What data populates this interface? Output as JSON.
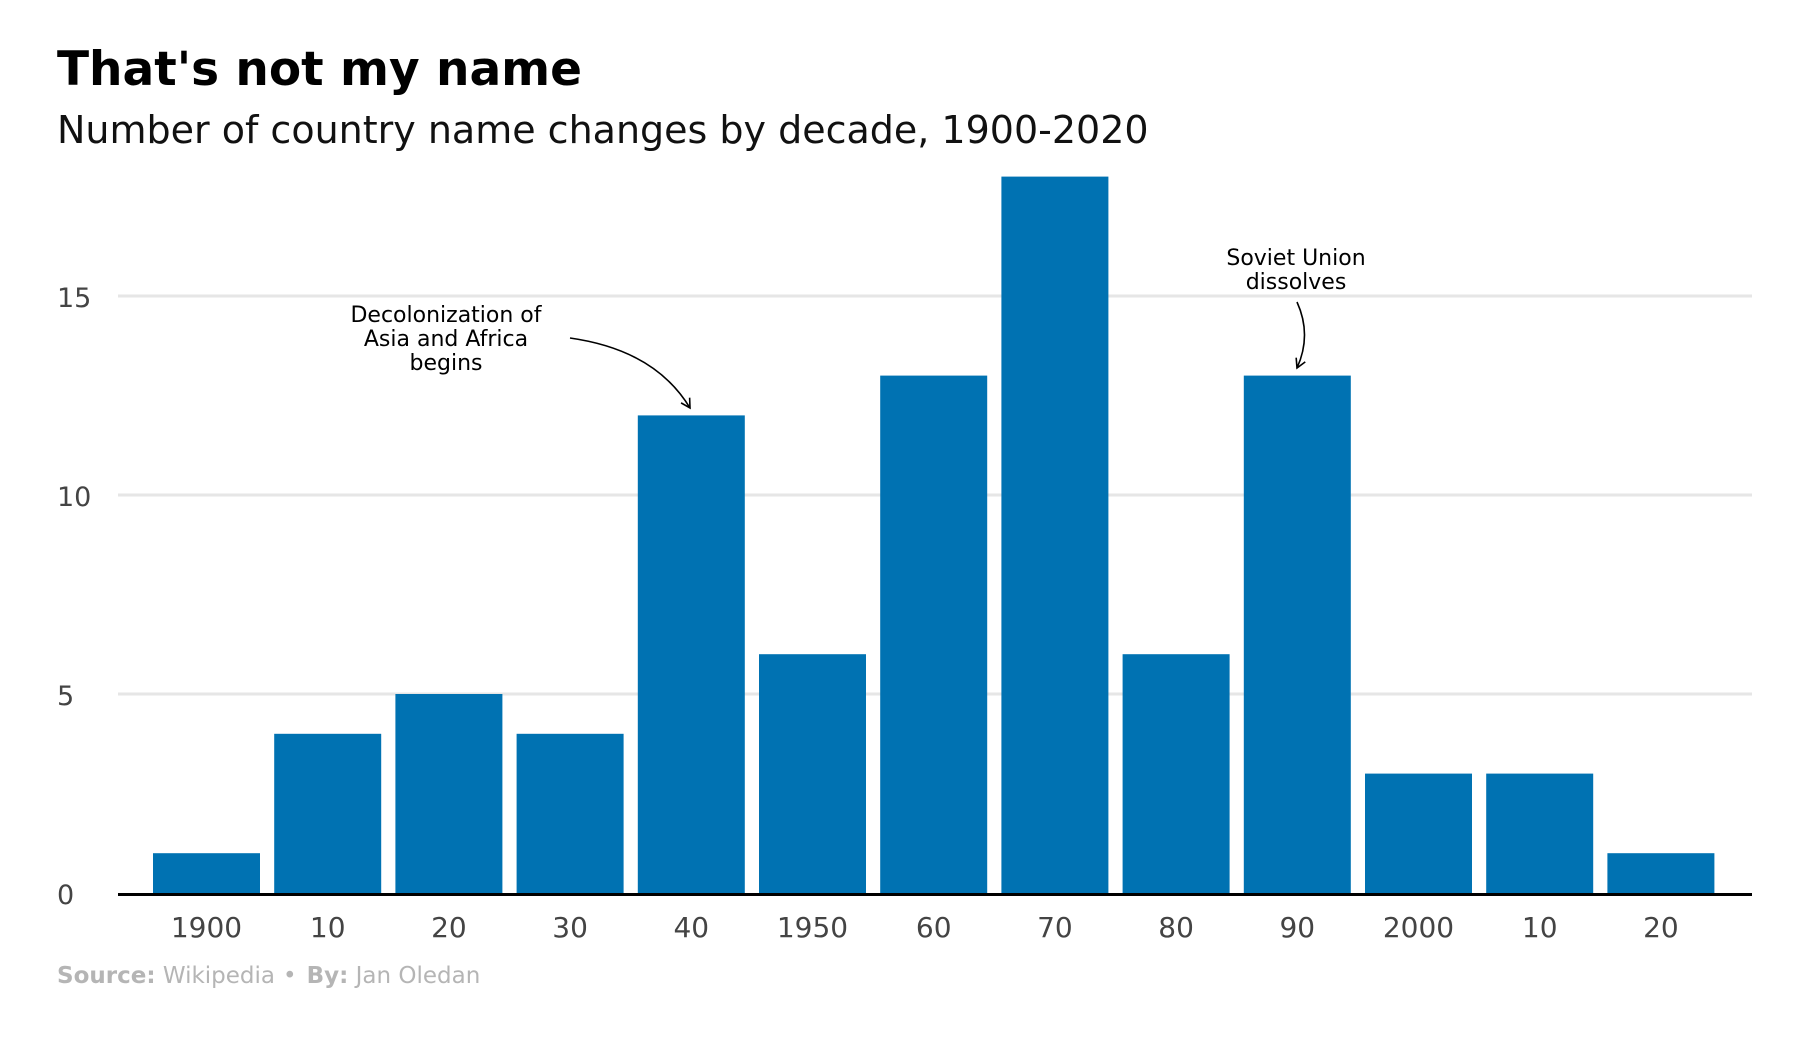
{
  "title": "That's not my name",
  "subtitle": "Number of country name changes by decade, 1900-2020",
  "footer": {
    "source_label": "Source:",
    "source_value": "Wikipedia",
    "separator": "•",
    "by_label": "By:",
    "by_value": "Jan Oledan"
  },
  "colors": {
    "bar": "#0072b2",
    "grid": "#e6e6e6",
    "axis": "#000000",
    "tick_text": "#444444",
    "footer_text": "#b5b5b5"
  },
  "chart_data": {
    "type": "bar",
    "title": "That's not my name",
    "subtitle": "Number of country name changes by decade, 1900-2020",
    "xlabel": "",
    "ylabel": "",
    "categories": [
      "1900",
      "10",
      "20",
      "30",
      "40",
      "1950",
      "60",
      "70",
      "80",
      "90",
      "2000",
      "10",
      "20"
    ],
    "values": [
      1,
      4,
      5,
      4,
      12,
      6,
      13,
      18,
      6,
      13,
      3,
      3,
      1
    ],
    "ylim": [
      0,
      18
    ],
    "yticks": [
      0,
      5,
      10,
      15
    ],
    "grid": true,
    "annotations": [
      {
        "text_lines": [
          "Decolonization of",
          "Asia and Africa",
          "begins"
        ],
        "target_category_index": 4
      },
      {
        "text_lines": [
          "Soviet Union",
          "dissolves"
        ],
        "target_category_index": 9
      }
    ]
  }
}
